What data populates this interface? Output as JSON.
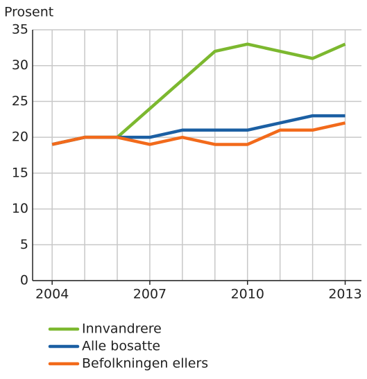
{
  "chart_data": {
    "type": "line",
    "ylabel": "Prosent",
    "x": [
      2004,
      2005,
      2006,
      2007,
      2008,
      2009,
      2010,
      2011,
      2012,
      2013
    ],
    "xlim": [
      2003.4,
      2013.5
    ],
    "xticks": [
      2004,
      2007,
      2010,
      2013
    ],
    "ylim": [
      0,
      35
    ],
    "yticks": [
      0,
      5,
      10,
      15,
      20,
      25,
      30,
      35
    ],
    "grid": true,
    "legend": "bottom",
    "series": [
      {
        "name": "Innvandrere",
        "color": "#7cb82f",
        "values": [
          19,
          20,
          20,
          24,
          28,
          32,
          33,
          32,
          31,
          33
        ]
      },
      {
        "name": "Alle bosatte",
        "color": "#1b5fa3",
        "values": [
          19,
          20,
          20,
          20,
          21,
          21,
          21,
          22,
          23,
          23
        ]
      },
      {
        "name": "Befolkningen ellers",
        "color": "#f26a1b",
        "values": [
          19,
          20,
          20,
          19,
          20,
          19,
          19,
          21,
          21,
          22
        ]
      }
    ]
  }
}
